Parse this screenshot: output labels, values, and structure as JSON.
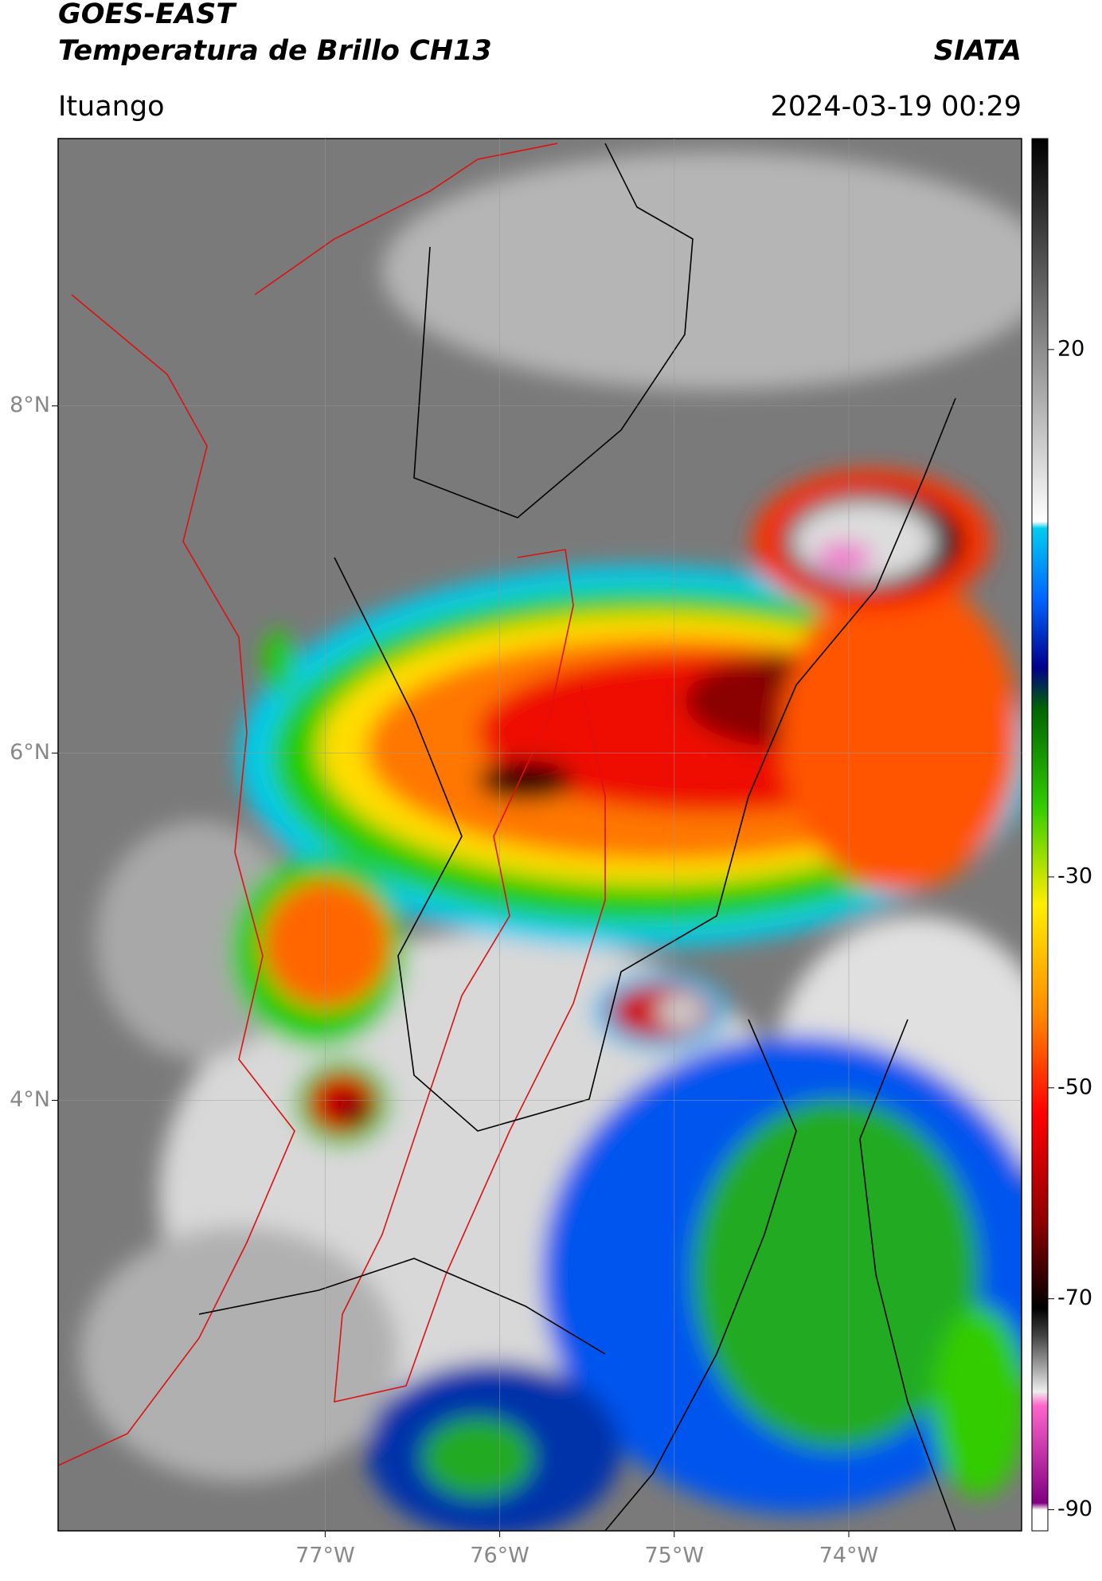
{
  "header": {
    "title": "GOES-EAST",
    "subtitle": "Temperatura de Brillo CH13",
    "brand": "SIATA",
    "location": "Ituango",
    "datetime": "2024-03-19 00:29"
  },
  "chart_data": {
    "type": "map",
    "xlim": [
      -78.53,
      -73.01
    ],
    "ylim": [
      1.52,
      9.54
    ],
    "xticks": [
      {
        "value": -77,
        "label": "77°W"
      },
      {
        "value": -76,
        "label": "76°W"
      },
      {
        "value": -75,
        "label": "75°W"
      },
      {
        "value": -74,
        "label": "74°W"
      }
    ],
    "yticks": [
      {
        "value": 8,
        "label": "8°N"
      },
      {
        "value": 6,
        "label": "6°N"
      },
      {
        "value": 4,
        "label": "4°N"
      }
    ],
    "grid": true,
    "colorbar": {
      "lim": [
        -92,
        40
      ],
      "ticks": [
        20,
        -30,
        -50,
        -70,
        -90
      ]
    }
  }
}
